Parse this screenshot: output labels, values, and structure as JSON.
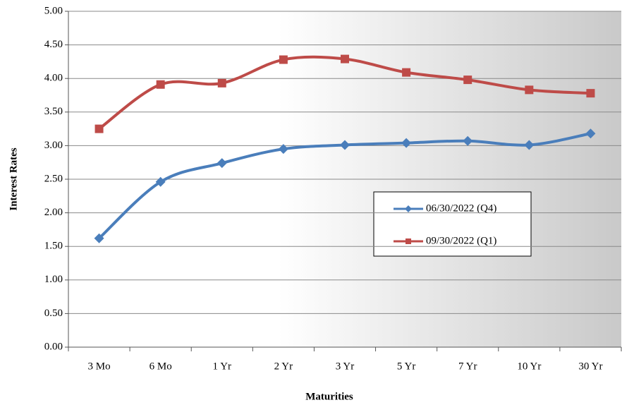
{
  "chart_data": {
    "type": "line",
    "x_label": "Maturities",
    "y_label": "Interest Rates",
    "categories": [
      "3 Mo",
      "6 Mo",
      "1 Yr",
      "2 Yr",
      "3 Yr",
      "5 Yr",
      "7 Yr",
      "10 Yr",
      "30 Yr"
    ],
    "series": [
      {
        "name": "06/30/2022 (Q4)",
        "color": "#4a7ebb",
        "marker": "diamond",
        "values": [
          1.62,
          2.46,
          2.74,
          2.95,
          3.01,
          3.04,
          3.07,
          3.01,
          3.18
        ]
      },
      {
        "name": "09/30/2022 (Q1)",
        "color": "#be4b48",
        "marker": "square",
        "values": [
          3.25,
          3.91,
          3.93,
          4.28,
          4.29,
          4.09,
          3.98,
          3.83,
          3.78
        ]
      }
    ],
    "ylim": [
      0,
      5
    ],
    "yticks": [
      {
        "value": 0,
        "label": "0.00"
      },
      {
        "value": 0.5,
        "label": "0.50"
      },
      {
        "value": 1,
        "label": "1.00"
      },
      {
        "value": 1.5,
        "label": "1.50"
      },
      {
        "value": 2,
        "label": "2.00"
      },
      {
        "value": 2.5,
        "label": "2.50"
      },
      {
        "value": 3,
        "label": "3.00"
      },
      {
        "value": 3.5,
        "label": "3.50"
      },
      {
        "value": 4,
        "label": "4.00"
      },
      {
        "value": 4.5,
        "label": "4.50"
      },
      {
        "value": 5,
        "label": "5.00"
      }
    ],
    "grid": true,
    "smooth": true
  }
}
